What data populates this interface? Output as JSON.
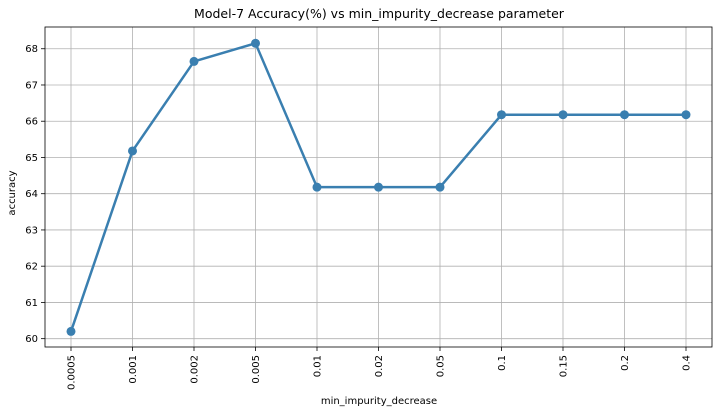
{
  "chart_data": {
    "type": "line",
    "title": "Model-7 Accuracy(%) vs min_impurity_decrease parameter",
    "xlabel": "min_impurity_decrease",
    "ylabel": "accuracy",
    "categories": [
      "0.0005",
      "0.001",
      "0.002",
      "0.005",
      "0.01",
      "0.02",
      "0.05",
      "0.1",
      "0.15",
      "0.2",
      "0.4"
    ],
    "series": [
      {
        "values": [
          60.2,
          65.18,
          67.65,
          68.15,
          64.18,
          64.18,
          64.18,
          66.18,
          66.18,
          66.18,
          66.18
        ]
      }
    ],
    "yticks": [
      60,
      61,
      62,
      63,
      64,
      65,
      66,
      67,
      68
    ],
    "ylim": [
      59.77,
      68.6
    ],
    "grid": true,
    "legend": "none",
    "colors": {
      "series": "#3a7fb0",
      "grid": "#b0b0b0"
    }
  }
}
